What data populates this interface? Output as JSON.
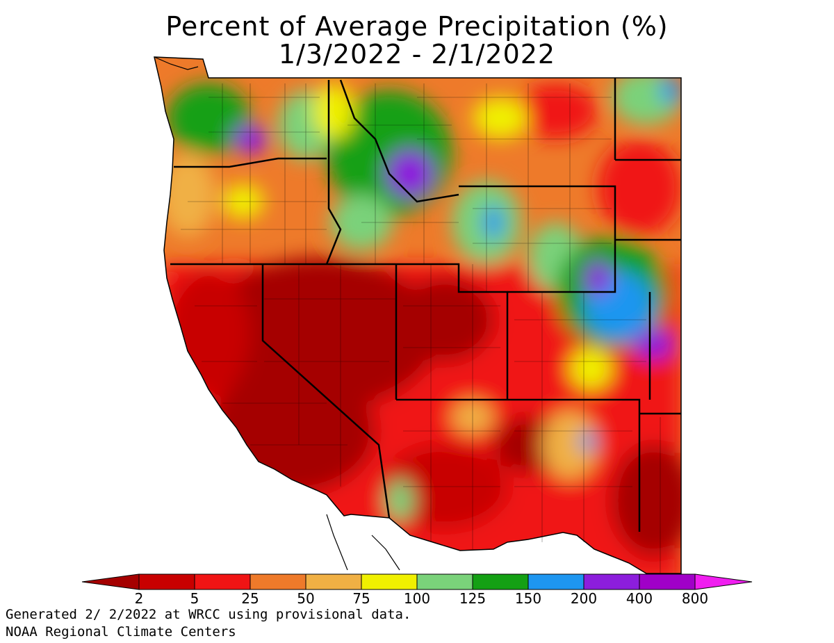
{
  "title": {
    "line1": "Percent of Average Precipitation (%)",
    "line2": "1/3/2022 - 2/1/2022"
  },
  "legend": {
    "ticks": [
      "2",
      "5",
      "25",
      "50",
      "75",
      "100",
      "125",
      "150",
      "200",
      "400",
      "800"
    ],
    "bins": [
      {
        "range": "<2",
        "color": "#a50000"
      },
      {
        "range": "2-5",
        "color": "#c80000"
      },
      {
        "range": "5-25",
        "color": "#f01414"
      },
      {
        "range": "25-50",
        "color": "#ee7a2a"
      },
      {
        "range": "50-75",
        "color": "#f0b044"
      },
      {
        "range": "75-100",
        "color": "#f0f000"
      },
      {
        "range": "100-125",
        "color": "#7ad27a"
      },
      {
        "range": "125-150",
        "color": "#14a014"
      },
      {
        "range": "150-200",
        "color": "#1e96f0"
      },
      {
        "range": "200-400",
        "color": "#8c1edc"
      },
      {
        "range": "400-800",
        "color": "#a000c8"
      },
      {
        "range": ">800",
        "color": "#f01ef0"
      }
    ]
  },
  "map": {
    "region": "Western United States",
    "regions": [
      {
        "area": "Washington west",
        "color": "#14a014"
      },
      {
        "area": "Washington east",
        "color": "#f0b044"
      },
      {
        "area": "Idaho central mountains",
        "color": "#8c1edc"
      },
      {
        "area": "Montana",
        "color": "#ee7a2a"
      },
      {
        "area": "Wyoming",
        "color": "#7ad27a"
      },
      {
        "area": "Colorado Front Range",
        "color": "#1e96f0"
      },
      {
        "area": "Oregon",
        "color": "#f0b044"
      },
      {
        "area": "California",
        "color": "#c80000"
      },
      {
        "area": "Nevada",
        "color": "#a50000"
      },
      {
        "area": "Utah",
        "color": "#c80000"
      },
      {
        "area": "Arizona",
        "color": "#f01414"
      },
      {
        "area": "New Mexico",
        "color": "#f01414"
      },
      {
        "area": "Texas west",
        "color": "#c80000"
      }
    ]
  },
  "footer": {
    "line1": "Generated 2/ 2/2022 at WRCC using provisional data.",
    "line2": "NOAA Regional Climate Centers"
  }
}
